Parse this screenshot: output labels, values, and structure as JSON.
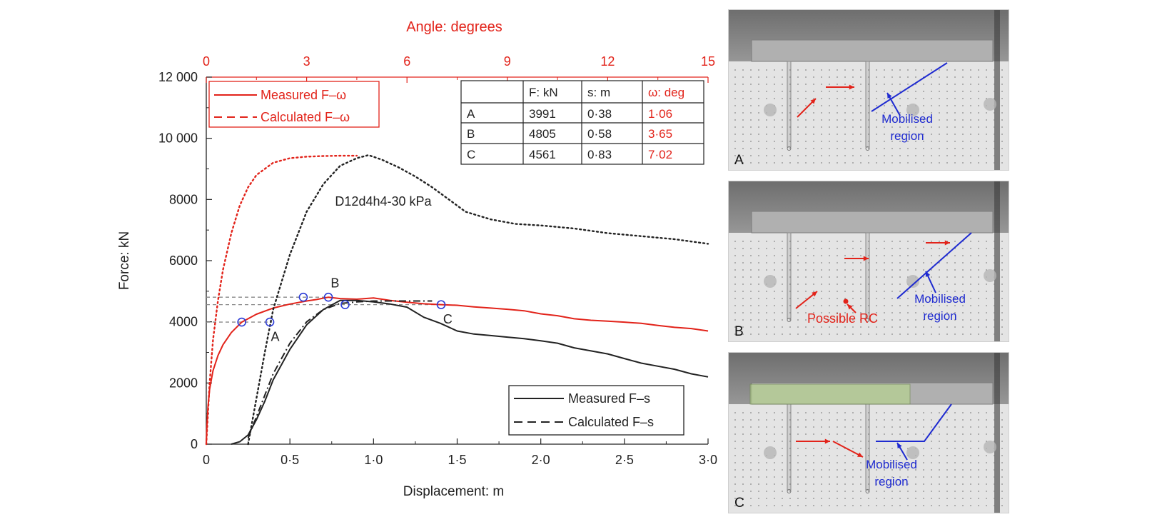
{
  "chart_data": {
    "type": "line",
    "xlabel": "Displacement: m",
    "ylabel": "Force: kN",
    "top_axis_label": "Angle: degrees",
    "xlim": [
      0,
      3.0
    ],
    "ylim": [
      0,
      12000
    ],
    "top_xlim": [
      0,
      15
    ],
    "x_ticks": [
      "0",
      "0·5",
      "1·0",
      "1·5",
      "2·0",
      "2·5",
      "3·0"
    ],
    "y_ticks": [
      "0",
      "2000",
      "4000",
      "6000",
      "8000",
      "10 000",
      "12 000"
    ],
    "top_ticks": [
      "0",
      "3",
      "6",
      "9",
      "12",
      "15"
    ],
    "annotation": "D12d4h4-30 kPa",
    "legend_angle": [
      "Measured F–ω",
      "Calculated F–ω"
    ],
    "legend_disp": [
      "Measured F–s",
      "Calculated F–s"
    ],
    "colors": {
      "angle": "#e2231a",
      "displacement": "#222222",
      "marker": "#2b3bd6",
      "guide": "#888888"
    },
    "series": [
      {
        "name": "Measured F–ω",
        "axis": "angle",
        "style": "solid",
        "color": "#e2231a",
        "x": [
          0,
          0.02,
          0.05,
          0.1,
          0.2,
          0.35,
          0.5,
          0.75,
          1.06,
          1.5,
          2.0,
          2.5,
          3.0,
          3.3,
          3.65,
          4.0,
          4.5,
          5.0,
          5.5,
          6.0,
          6.5,
          7.02,
          7.5,
          8.0,
          8.5,
          9.0,
          9.5,
          10.0,
          10.5,
          11.0,
          11.5,
          12.0,
          12.5,
          13.0,
          13.5,
          14.0,
          14.5,
          15.0
        ],
        "y": [
          0,
          600,
          1200,
          1800,
          2400,
          2900,
          3250,
          3650,
          3991,
          4250,
          4450,
          4580,
          4680,
          4730,
          4805,
          4760,
          4740,
          4780,
          4700,
          4640,
          4590,
          4561,
          4540,
          4490,
          4450,
          4410,
          4360,
          4260,
          4200,
          4100,
          4050,
          4020,
          3990,
          3950,
          3880,
          3820,
          3780,
          3700
        ]
      },
      {
        "name": "Calculated F–ω",
        "axis": "angle",
        "style": "dotted",
        "color": "#e2231a",
        "x": [
          0,
          0.1,
          0.2,
          0.35,
          0.5,
          0.75,
          1.0,
          1.25,
          1.5,
          2.0,
          2.5,
          3.0,
          3.5,
          4.0,
          4.5
        ],
        "y": [
          0,
          2000,
          3400,
          4700,
          5700,
          6900,
          7800,
          8400,
          8800,
          9200,
          9350,
          9400,
          9420,
          9430,
          9430
        ]
      },
      {
        "name": "Measured F–s",
        "axis": "displacement",
        "style": "solid",
        "color": "#222222",
        "x": [
          0.15,
          0.2,
          0.25,
          0.3,
          0.35,
          0.4,
          0.5,
          0.6,
          0.7,
          0.8,
          0.9,
          1.0,
          1.1,
          1.2,
          1.3,
          1.4,
          1.5,
          1.6,
          1.7,
          1.8,
          1.9,
          2.0,
          2.1,
          2.2,
          2.3,
          2.4,
          2.5,
          2.6,
          2.7,
          2.8,
          2.9,
          3.0
        ],
        "y": [
          0,
          80,
          300,
          800,
          1400,
          2100,
          3100,
          3900,
          4400,
          4700,
          4700,
          4650,
          4580,
          4480,
          4150,
          3950,
          3700,
          3600,
          3550,
          3500,
          3450,
          3380,
          3300,
          3150,
          3050,
          2950,
          2800,
          2650,
          2550,
          2450,
          2300,
          2200
        ]
      },
      {
        "name": "Calculated F–s",
        "axis": "displacement",
        "style": "dashdot",
        "color": "#222222",
        "x": [
          0.25,
          0.3,
          0.35,
          0.4,
          0.5,
          0.6,
          0.7,
          0.8,
          0.9,
          1.0,
          1.1,
          1.2,
          1.3,
          1.35
        ],
        "y": [
          200,
          900,
          1600,
          2300,
          3300,
          4000,
          4400,
          4600,
          4650,
          4680,
          4680,
          4680,
          4680,
          4680
        ]
      },
      {
        "name": "D12d4h4-30 kPa",
        "axis": "displacement",
        "style": "dotted",
        "color": "#222222",
        "x": [
          0.25,
          0.3,
          0.35,
          0.4,
          0.5,
          0.6,
          0.7,
          0.8,
          0.9,
          0.97,
          1.05,
          1.15,
          1.25,
          1.35,
          1.45,
          1.55,
          1.7,
          1.85,
          2.0,
          2.2,
          2.4,
          2.6,
          2.8,
          3.0
        ],
        "y": [
          0,
          1500,
          3000,
          4400,
          6200,
          7600,
          8500,
          9100,
          9350,
          9450,
          9300,
          9050,
          8750,
          8400,
          8000,
          7600,
          7350,
          7200,
          7150,
          7050,
          6900,
          6800,
          6700,
          6550
        ]
      }
    ],
    "points": [
      {
        "label": "A",
        "axis": "angle",
        "x": 1.06,
        "y": 3991,
        "label_dx": 1,
        "label_dy": -480
      },
      {
        "label": "B",
        "axis": "angle",
        "x": 3.65,
        "y": 4805,
        "label_dx": 0.2,
        "label_dy": 460
      },
      {
        "label": "C",
        "axis": "angle",
        "x": 7.02,
        "y": 4561,
        "label_dx": 0.2,
        "label_dy": -480
      },
      {
        "label": "",
        "axis": "displacement",
        "x": 0.38,
        "y": 3991
      },
      {
        "label": "",
        "axis": "displacement",
        "x": 0.58,
        "y": 4805
      },
      {
        "label": "",
        "axis": "displacement",
        "x": 0.83,
        "y": 4561
      }
    ],
    "table": {
      "headers": [
        "",
        "F: kN",
        "s: m",
        "ω: deg"
      ],
      "rows": [
        [
          "A",
          "3991",
          "0·38",
          "1·06"
        ],
        [
          "B",
          "4805",
          "0·58",
          "3·65"
        ],
        [
          "C",
          "4561",
          "0·83",
          "7·02"
        ]
      ]
    }
  },
  "panels": [
    {
      "letter": "A",
      "region_text": [
        "Mobilised",
        "region"
      ]
    },
    {
      "letter": "B",
      "region_text": [
        "Mobilised",
        "region"
      ],
      "rc_label": "Possible RC"
    },
    {
      "letter": "C",
      "region_text": [
        "Mobilised",
        "region"
      ]
    }
  ]
}
